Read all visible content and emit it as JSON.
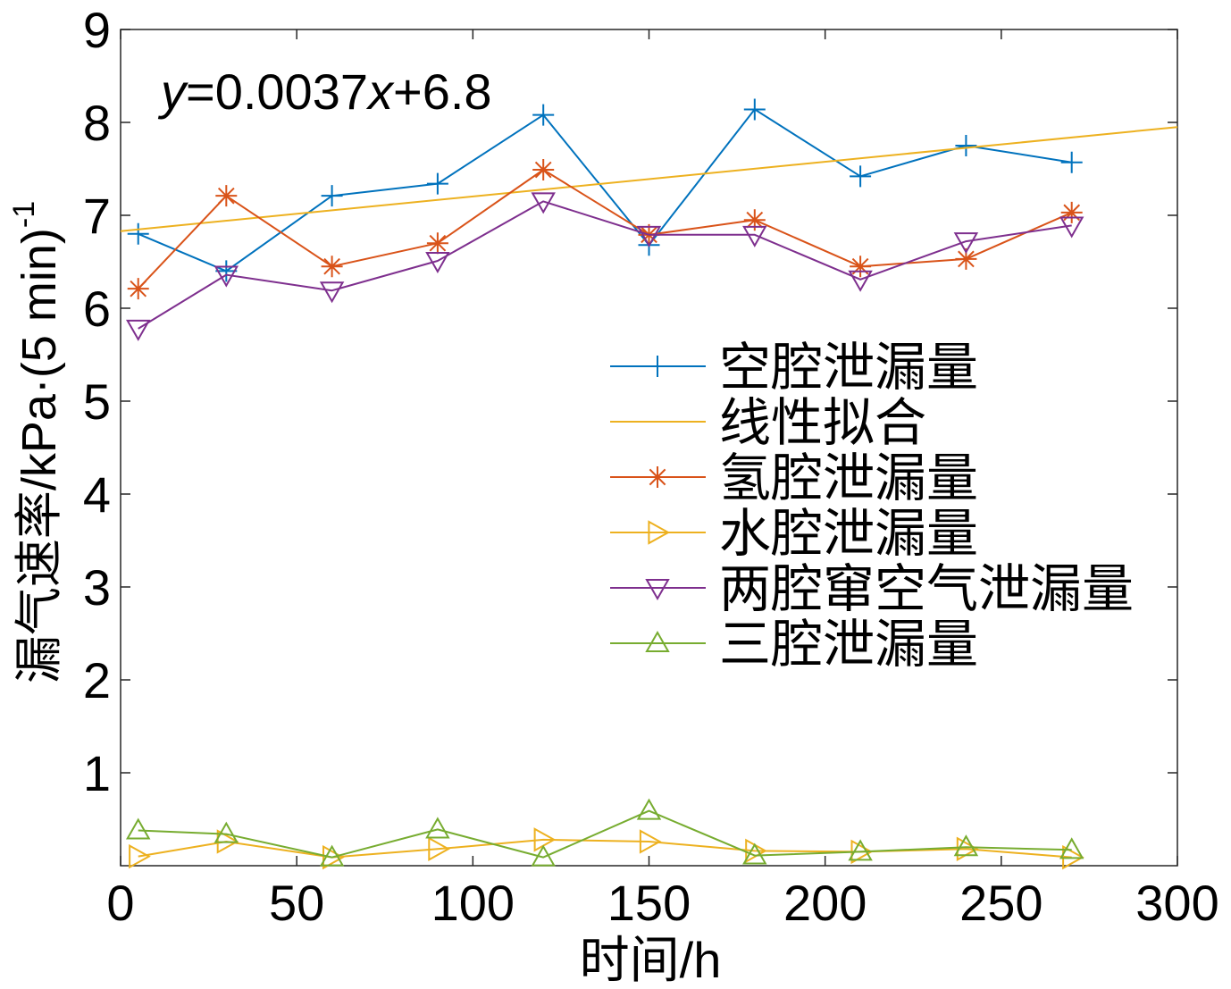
{
  "chart_data": {
    "type": "line",
    "xlabel": "时间/h",
    "ylabel": "漏气速率/kPa·(5 min)",
    "ylabel_superscript": "-1",
    "annotation": "y=0.0037x+6.8",
    "xlim": [
      0,
      300
    ],
    "ylim": [
      0,
      9
    ],
    "xticks": [
      0,
      50,
      100,
      150,
      200,
      250,
      300
    ],
    "yticks": [
      1,
      2,
      3,
      4,
      5,
      6,
      7,
      8,
      9
    ],
    "grid": false,
    "legend_position": "center-right",
    "series": [
      {
        "name": "空腔泄漏量",
        "color": "#0072BD",
        "marker": "plus",
        "x": [
          5,
          30,
          60,
          90,
          120,
          150,
          180,
          210,
          240,
          270
        ],
        "y": [
          6.8,
          6.4,
          7.21,
          7.34,
          8.08,
          6.68,
          8.14,
          7.42,
          7.75,
          7.57
        ]
      },
      {
        "name": "线性拟合",
        "color": "#EDB120",
        "x": [
          0,
          300
        ],
        "y": [
          6.83,
          7.95
        ]
      },
      {
        "name": "氢腔泄漏量",
        "color": "#D95319",
        "marker": "asterisk",
        "x": [
          5,
          30,
          60,
          90,
          120,
          150,
          180,
          210,
          240,
          270
        ],
        "y": [
          6.21,
          7.21,
          6.45,
          6.7,
          7.49,
          6.79,
          6.95,
          6.45,
          6.53,
          7.03
        ]
      },
      {
        "name": "水腔泄漏量",
        "color": "#EDB120",
        "marker": "triangle-right",
        "x": [
          5,
          30,
          60,
          90,
          120,
          150,
          180,
          210,
          240,
          270
        ],
        "y": [
          0.1,
          0.26,
          0.09,
          0.18,
          0.28,
          0.26,
          0.16,
          0.15,
          0.18,
          0.09
        ]
      },
      {
        "name": "两腔窜空气泄漏量",
        "color": "#7E2F8E",
        "marker": "triangle-down",
        "x": [
          5,
          30,
          60,
          90,
          120,
          150,
          180,
          210,
          240,
          270
        ],
        "y": [
          5.78,
          6.36,
          6.19,
          6.51,
          7.15,
          6.79,
          6.79,
          6.31,
          6.72,
          6.89
        ]
      },
      {
        "name": "三腔泄漏量",
        "color": "#77AC30",
        "marker": "triangle-up",
        "x": [
          5,
          30,
          60,
          90,
          120,
          150,
          180,
          210,
          240,
          270
        ],
        "y": [
          0.38,
          0.34,
          0.09,
          0.39,
          0.09,
          0.59,
          0.11,
          0.15,
          0.2,
          0.17
        ]
      }
    ]
  }
}
